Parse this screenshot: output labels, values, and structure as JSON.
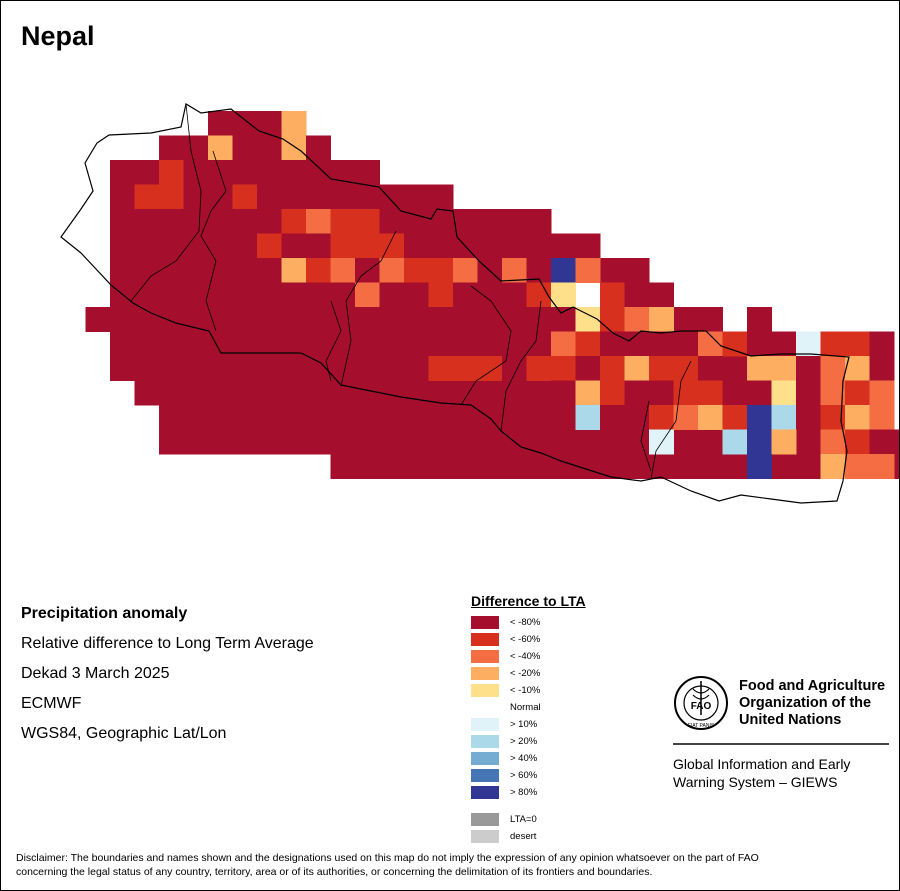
{
  "title": "Nepal",
  "info": {
    "heading": "Precipitation anomaly",
    "line1": "Relative difference to Long Term Average",
    "line2": "Dekad 3 March 2025",
    "line3": "ECMWF",
    "line4": "WGS84, Geographic Lat/Lon"
  },
  "legend": {
    "title": "Difference to LTA",
    "classes": [
      {
        "label": "< -80%",
        "color": "#a50f2d"
      },
      {
        "label": "< -60%",
        "color": "#d7301f"
      },
      {
        "label": "< -40%",
        "color": "#f46d43"
      },
      {
        "label": "< -20%",
        "color": "#fdae61"
      },
      {
        "label": "< -10%",
        "color": "#fee08b"
      },
      {
        "label": "Normal",
        "color": "#ffffff"
      },
      {
        "label": "> 10%",
        "color": "#e0f3f8"
      },
      {
        "label": "> 20%",
        "color": "#abd9e9"
      },
      {
        "label": "> 40%",
        "color": "#74add1"
      },
      {
        "label": "> 60%",
        "color": "#4575b4"
      },
      {
        "label": "> 80%",
        "color": "#313695"
      }
    ],
    "extra": [
      {
        "label": "LTA=0",
        "color": "#999999"
      },
      {
        "label": "desert",
        "color": "#cccccc"
      }
    ]
  },
  "fao": {
    "name1": "Food and Agriculture",
    "name2": "Organization of the",
    "name3": "United Nations",
    "logo_text": "FAO",
    "motto": "FIAT PANIS",
    "giews1": "Global Information and Early",
    "giews2": "Warning System – GIEWS"
  },
  "disclaimer1": "Disclaimer: The boundaries and names shown and the designations used on this map do not imply the expression of any opinion whatsoever on the part of FAO",
  "disclaimer2": "concerning the legal status of any country, territory, area or of its authorities, or concerning the delimitation of its frontiers and boundaries.",
  "grid": {
    "rows": [
      "......ooo.......................",
      "....ooollo......................",
      "..ooooooloo.....................",
      "..oooooooooo....................",
      "..oooooooooo....................",
      "..ooooooooooooo....ooo..........",
      "..oooooooooooooo.....ooo........",
      "..ooooooooooooooooo...ooo.......",
      ".ooooooooooooooooooooooooos.....",
      "..ooooooooooooooooooooooooooo...",
      "..oooooooooooooooooooooooooooooo",
      "...ooooooooooooooooooooooooooooo",
      "....ooooooooooooooooooooooooooooo",
      "....ooooooooooooooooooooooooooooooo",
      "...........ooooooooooooooooooooooooooooooo"
    ]
  },
  "cells": [
    {
      "r": 0,
      "c": 7,
      "v": "<-80%"
    },
    {
      "r": 0,
      "c": 8,
      "v": "<-80%"
    },
    {
      "r": 0,
      "c": 9,
      "v": "<-20%"
    },
    {
      "r": 1,
      "c": 4,
      "v": "<-80%"
    },
    {
      "r": 1,
      "c": 5,
      "v": "<-80%"
    },
    {
      "r": 1,
      "c": 6,
      "v": "<-20%"
    },
    {
      "r": 1,
      "c": 7,
      "v": "<-80%"
    },
    {
      "r": 1,
      "c": 8,
      "v": "<-80%"
    },
    {
      "r": 1,
      "c": 9,
      "v": "<-20%"
    },
    {
      "r": 1,
      "c": 10,
      "v": "<-80%"
    },
    {
      "r": 2,
      "c": 3,
      "v": "<-80%"
    },
    {
      "r": 2,
      "c": 4,
      "v": "<-60%"
    },
    {
      "r": 2,
      "c": 5,
      "v": "<-80%"
    },
    {
      "r": 2,
      "c": 6,
      "v": "<-80%"
    },
    {
      "r": 2,
      "c": 7,
      "v": "<-80%"
    },
    {
      "r": 2,
      "c": 8,
      "v": "<-80%"
    },
    {
      "r": 2,
      "c": 9,
      "v": "<-80%"
    },
    {
      "r": 2,
      "c": 10,
      "v": "<-80%"
    },
    {
      "r": 2,
      "c": 11,
      "v": "<-80%"
    },
    {
      "r": 2,
      "c": 12,
      "v": "<-80%"
    },
    {
      "r": 3,
      "c": 3,
      "v": "<-60%"
    },
    {
      "r": 3,
      "c": 4,
      "v": "<-60%"
    },
    {
      "r": 3,
      "c": 5,
      "v": "<-80%"
    },
    {
      "r": 3,
      "c": 6,
      "v": "<-80%"
    },
    {
      "r": 3,
      "c": 7,
      "v": "<-60%"
    },
    {
      "r": 3,
      "c": 8,
      "v": "<-80%"
    },
    {
      "r": 3,
      "c": 9,
      "v": "<-80%"
    },
    {
      "r": 3,
      "c": 10,
      "v": "<-80%"
    },
    {
      "r": 3,
      "c": 11,
      "v": "<-80%"
    },
    {
      "r": 3,
      "c": 12,
      "v": "<-80%"
    },
    {
      "r": 3,
      "c": 13,
      "v": "<-80%"
    },
    {
      "r": 3,
      "c": 14,
      "v": "<-80%"
    },
    {
      "r": 3,
      "c": 15,
      "v": "<-80%"
    },
    {
      "r": 4,
      "c": 2,
      "v": "<-80%"
    },
    {
      "r": 4,
      "c": 3,
      "v": "<-80%"
    },
    {
      "r": 4,
      "c": 4,
      "v": "<-80%"
    },
    {
      "r": 4,
      "c": 5,
      "v": "<-80%"
    },
    {
      "r": 4,
      "c": 6,
      "v": "<-80%"
    },
    {
      "r": 4,
      "c": 7,
      "v": "<-80%"
    },
    {
      "r": 4,
      "c": 8,
      "v": "<-80%"
    },
    {
      "r": 4,
      "c": 9,
      "v": "<-60%"
    },
    {
      "r": 4,
      "c": 10,
      "v": "<-40%"
    },
    {
      "r": 4,
      "c": 11,
      "v": "<-60%"
    },
    {
      "r": 4,
      "c": 12,
      "v": "<-60%"
    },
    {
      "r": 4,
      "c": 13,
      "v": "<-80%"
    },
    {
      "r": 4,
      "c": 14,
      "v": "<-80%"
    },
    {
      "r": 4,
      "c": 15,
      "v": "<-80%"
    },
    {
      "r": 4,
      "c": 16,
      "v": "<-80%"
    },
    {
      "r": 4,
      "c": 17,
      "v": "<-80%"
    },
    {
      "r": 4,
      "c": 18,
      "v": "<-80%"
    },
    {
      "r": 4,
      "c": 19,
      "v": "<-80%"
    },
    {
      "r": 5,
      "c": 3,
      "v": "<-80%"
    },
    {
      "r": 5,
      "c": 4,
      "v": "<-80%"
    },
    {
      "r": 5,
      "c": 5,
      "v": "<-80%"
    },
    {
      "r": 5,
      "c": 6,
      "v": "<-80%"
    },
    {
      "r": 5,
      "c": 7,
      "v": "<-80%"
    },
    {
      "r": 5,
      "c": 8,
      "v": "<-60%"
    },
    {
      "r": 5,
      "c": 9,
      "v": "<-80%"
    },
    {
      "r": 5,
      "c": 10,
      "v": "<-80%"
    },
    {
      "r": 5,
      "c": 11,
      "v": "<-60%"
    },
    {
      "r": 5,
      "c": 12,
      "v": "<-60%"
    },
    {
      "r": 5,
      "c": 13,
      "v": "<-60%"
    },
    {
      "r": 5,
      "c": 14,
      "v": "<-80%"
    },
    {
      "r": 5,
      "c": 15,
      "v": "<-80%"
    },
    {
      "r": 5,
      "c": 16,
      "v": "<-80%"
    },
    {
      "r": 5,
      "c": 17,
      "v": "<-80%"
    },
    {
      "r": 5,
      "c": 18,
      "v": "<-80%"
    },
    {
      "r": 6,
      "c": 5,
      "v": "<-80%"
    },
    {
      "r": 6,
      "c": 6,
      "v": "<-80%"
    },
    {
      "r": 6,
      "c": 7,
      "v": "<-80%"
    },
    {
      "r": 6,
      "c": 8,
      "v": "<-80%"
    },
    {
      "r": 6,
      "c": 9,
      "v": "<-20%"
    },
    {
      "r": 6,
      "c": 10,
      "v": "<-60%"
    },
    {
      "r": 6,
      "c": 11,
      "v": "<-40%"
    },
    {
      "r": 6,
      "c": 12,
      "v": "<-80%"
    },
    {
      "r": 6,
      "c": 13,
      "v": "<-40%"
    },
    {
      "r": 6,
      "c": 14,
      "v": "<-60%"
    },
    {
      "r": 6,
      "c": 15,
      "v": "<-60%"
    },
    {
      "r": 6,
      "c": 16,
      "v": "<-40%"
    },
    {
      "r": 6,
      "c": 17,
      "v": "<-80%"
    },
    {
      "r": 6,
      "c": 18,
      "v": "<-40%"
    },
    {
      "r": 6,
      "c": 19,
      "v": "<-80%"
    },
    {
      "r": 6,
      "c": 20,
      "v": ">80%"
    },
    {
      "r": 6,
      "c": 21,
      "v": "<-40%"
    },
    {
      "r": 7,
      "c": 7,
      "v": "<-80%"
    },
    {
      "r": 7,
      "c": 8,
      "v": "<-80%"
    },
    {
      "r": 7,
      "c": 9,
      "v": "<-80%"
    },
    {
      "r": 7,
      "c": 10,
      "v": "<-80%"
    },
    {
      "r": 7,
      "c": 11,
      "v": "<-80%"
    },
    {
      "r": 7,
      "c": 12,
      "v": "<-40%"
    },
    {
      "r": 7,
      "c": 13,
      "v": "<-80%"
    },
    {
      "r": 7,
      "c": 14,
      "v": "<-80%"
    },
    {
      "r": 7,
      "c": 15,
      "v": "<-60%"
    },
    {
      "r": 7,
      "c": 16,
      "v": "<-80%"
    },
    {
      "r": 7,
      "c": 17,
      "v": "<-80%"
    },
    {
      "r": 7,
      "c": 18,
      "v": "<-80%"
    },
    {
      "r": 7,
      "c": 19,
      "v": "<-60%"
    },
    {
      "r": 7,
      "c": 20,
      "v": "<-10%"
    },
    {
      "r": 7,
      "c": 22,
      "v": "<-60%"
    },
    {
      "r": 7,
      "c": 23,
      "v": "<-80%"
    },
    {
      "r": 8,
      "c": 8,
      "v": "<-80%"
    },
    {
      "r": 8,
      "c": 9,
      "v": "<-80%"
    },
    {
      "r": 8,
      "c": 10,
      "v": "<-80%"
    },
    {
      "r": 8,
      "c": 11,
      "v": "<-80%"
    },
    {
      "r": 8,
      "c": 12,
      "v": "<-80%"
    },
    {
      "r": 8,
      "c": 13,
      "v": "<-80%"
    },
    {
      "r": 8,
      "c": 14,
      "v": "<-80%"
    },
    {
      "r": 8,
      "c": 15,
      "v": "<-80%"
    },
    {
      "r": 8,
      "c": 16,
      "v": "<-80%"
    },
    {
      "r": 8,
      "c": 17,
      "v": "<-80%"
    },
    {
      "r": 8,
      "c": 18,
      "v": "<-80%"
    },
    {
      "r": 8,
      "c": 19,
      "v": "<-80%"
    },
    {
      "r": 8,
      "c": 20,
      "v": "<-80%"
    },
    {
      "r": 8,
      "c": 21,
      "v": "<-10%"
    },
    {
      "r": 8,
      "c": 22,
      "v": "<-60%"
    },
    {
      "r": 8,
      "c": 23,
      "v": "<-40%"
    },
    {
      "r": 8,
      "c": 24,
      "v": "<-20%"
    },
    {
      "r": 8,
      "c": 28,
      "v": "<-80%"
    },
    {
      "r": 9,
      "c": 13,
      "v": "<-80%"
    },
    {
      "r": 9,
      "c": 14,
      "v": "<-80%"
    },
    {
      "r": 9,
      "c": 15,
      "v": "<-80%"
    },
    {
      "r": 9,
      "c": 16,
      "v": "<-80%"
    },
    {
      "r": 9,
      "c": 17,
      "v": "<-80%"
    },
    {
      "r": 9,
      "c": 18,
      "v": "<-80%"
    },
    {
      "r": 9,
      "c": 19,
      "v": "<-80%"
    },
    {
      "r": 9,
      "c": 20,
      "v": "<-40%"
    },
    {
      "r": 9,
      "c": 21,
      "v": "<-60%"
    },
    {
      "r": 9,
      "c": 22,
      "v": "<-80%"
    },
    {
      "r": 9,
      "c": 23,
      "v": "<-80%"
    },
    {
      "r": 9,
      "c": 24,
      "v": "<-80%"
    },
    {
      "r": 9,
      "c": 25,
      "v": "<-80%"
    },
    {
      "r": 9,
      "c": 26,
      "v": "<-40%"
    },
    {
      "r": 9,
      "c": 27,
      "v": "<-60%"
    },
    {
      "r": 9,
      "c": 28,
      "v": "<-80%"
    },
    {
      "r": 9,
      "c": 29,
      "v": "<-80%"
    },
    {
      "r": 9,
      "c": 30,
      "v": ">10%"
    },
    {
      "r": 9,
      "c": 31,
      "v": "<-60%"
    },
    {
      "r": 9,
      "c": 32,
      "v": "<-60%"
    },
    {
      "r": 9,
      "c": 33,
      "v": "<-80%"
    },
    {
      "r": 10,
      "c": 15,
      "v": "<-60%"
    },
    {
      "r": 10,
      "c": 16,
      "v": "<-60%"
    },
    {
      "r": 10,
      "c": 17,
      "v": "<-60%"
    },
    {
      "r": 10,
      "c": 18,
      "v": "<-80%"
    },
    {
      "r": 10,
      "c": 19,
      "v": "<-60%"
    },
    {
      "r": 10,
      "c": 20,
      "v": "<-60%"
    },
    {
      "r": 10,
      "c": 21,
      "v": "<-80%"
    },
    {
      "r": 10,
      "c": 22,
      "v": "<-60%"
    },
    {
      "r": 10,
      "c": 23,
      "v": "<-20%"
    },
    {
      "r": 10,
      "c": 24,
      "v": "<-60%"
    },
    {
      "r": 10,
      "c": 25,
      "v": "<-60%"
    },
    {
      "r": 10,
      "c": 26,
      "v": "<-80%"
    },
    {
      "r": 10,
      "c": 28,
      "v": "<-20%"
    },
    {
      "r": 10,
      "c": 29,
      "v": "<-20%"
    },
    {
      "r": 10,
      "c": 30,
      "v": "<-80%"
    },
    {
      "r": 10,
      "c": 31,
      "v": "<-40%"
    },
    {
      "r": 10,
      "c": 32,
      "v": "<-20%"
    },
    {
      "r": 10,
      "c": 33,
      "v": "<-80%"
    },
    {
      "r": 11,
      "c": 20,
      "v": "<-80%"
    },
    {
      "r": 11,
      "c": 21,
      "v": "<-20%"
    },
    {
      "r": 11,
      "c": 22,
      "v": "<-60%"
    },
    {
      "r": 11,
      "c": 23,
      "v": "<-80%"
    },
    {
      "r": 11,
      "c": 24,
      "v": "<-80%"
    },
    {
      "r": 11,
      "c": 25,
      "v": "<-60%"
    },
    {
      "r": 11,
      "c": 26,
      "v": "<-60%"
    },
    {
      "r": 11,
      "c": 27,
      "v": "<-80%"
    },
    {
      "r": 11,
      "c": 28,
      "v": "<-80%"
    },
    {
      "r": 11,
      "c": 29,
      "v": "<-10%"
    },
    {
      "r": 11,
      "c": 30,
      "v": "<-80%"
    },
    {
      "r": 11,
      "c": 31,
      "v": "<-40%"
    },
    {
      "r": 11,
      "c": 32,
      "v": "<-60%"
    },
    {
      "r": 11,
      "c": 33,
      "v": "<-40%"
    },
    {
      "r": 12,
      "c": 21,
      "v": ">20%"
    },
    {
      "r": 12,
      "c": 22,
      "v": "<-80%"
    },
    {
      "r": 12,
      "c": 23,
      "v": "<-80%"
    },
    {
      "r": 12,
      "c": 24,
      "v": "<-60%"
    },
    {
      "r": 12,
      "c": 25,
      "v": "<-40%"
    },
    {
      "r": 12,
      "c": 26,
      "v": "<-20%"
    },
    {
      "r": 12,
      "c": 27,
      "v": "<-60%"
    },
    {
      "r": 12,
      "c": 28,
      "v": ">80%"
    },
    {
      "r": 12,
      "c": 29,
      "v": ">20%"
    },
    {
      "r": 12,
      "c": 30,
      "v": "<-80%"
    },
    {
      "r": 12,
      "c": 31,
      "v": "<-60%"
    },
    {
      "r": 12,
      "c": 32,
      "v": "<-20%"
    },
    {
      "r": 12,
      "c": 33,
      "v": "<-40%"
    },
    {
      "r": 13,
      "c": 24,
      "v": ">10%"
    },
    {
      "r": 13,
      "c": 27,
      "v": ">20%"
    },
    {
      "r": 13,
      "c": 28,
      "v": ">80%"
    },
    {
      "r": 13,
      "c": 29,
      "v": "<-20%"
    },
    {
      "r": 13,
      "c": 31,
      "v": "<-40%"
    },
    {
      "r": 13,
      "c": 32,
      "v": "<-60%"
    },
    {
      "r": 13,
      "c": 33,
      "v": "<-80%"
    },
    {
      "r": 14,
      "c": 28,
      "v": ">80%"
    },
    {
      "r": 14,
      "c": 31,
      "v": "<-20%"
    },
    {
      "r": 14,
      "c": 32,
      "v": "<-40%"
    },
    {
      "r": 14,
      "c": 33,
      "v": "<-40%"
    }
  ]
}
